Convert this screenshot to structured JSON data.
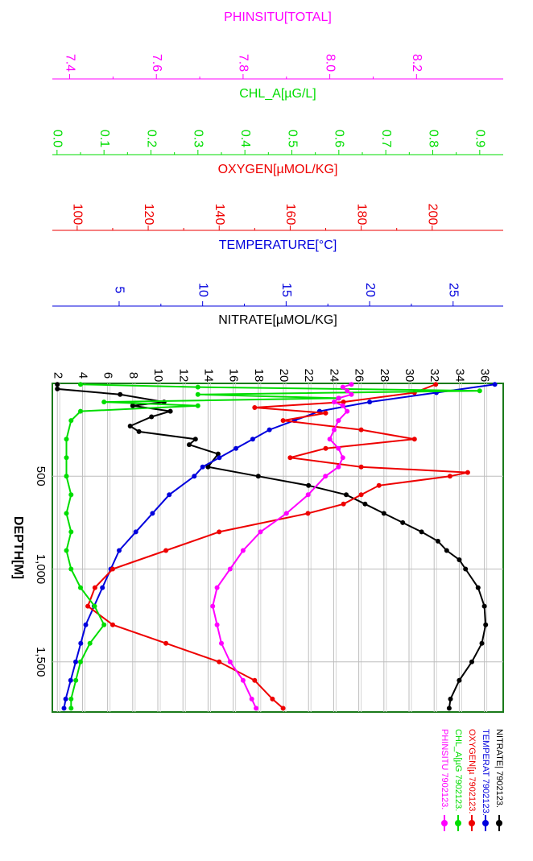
{
  "chart_data": {
    "type": "line",
    "orientation": "rotated-90-clockwise",
    "depth_axis": {
      "label": "DEPTH[M]",
      "lim": [
        0,
        1770
      ],
      "ticks": [
        500,
        1000,
        1500
      ],
      "tick_labels": [
        "500",
        "1,000",
        "1,500"
      ]
    },
    "value_axes": [
      {
        "key": "ph",
        "label": "PHINSITU[TOTAL]",
        "color": "#ff00ff",
        "lim": [
          7.36,
          8.4
        ],
        "ticks": [
          7.4,
          7.6,
          7.8,
          8.0,
          8.2
        ],
        "tick_labels": [
          "7.4",
          "7.6",
          "7.8",
          "8.0",
          "8.2"
        ]
      },
      {
        "key": "chl",
        "label": "CHL_A[µG/L]",
        "color": "#00dd00",
        "lim": [
          -0.01,
          0.95
        ],
        "ticks": [
          0.0,
          0.1,
          0.2,
          0.3,
          0.4,
          0.5,
          0.6,
          0.7,
          0.8,
          0.9
        ],
        "tick_labels": [
          "0.0",
          "0.1",
          "0.2",
          "0.3",
          "0.4",
          "0.5",
          "0.6",
          "0.7",
          "0.8",
          "0.9"
        ]
      },
      {
        "key": "oxy",
        "label": "OXYGEN[µMOL/KG]",
        "color": "#ee0000",
        "lim": [
          93,
          220
        ],
        "ticks": [
          100,
          120,
          140,
          160,
          180,
          200
        ],
        "tick_labels": [
          "100",
          "120",
          "140",
          "160",
          "180",
          "200"
        ]
      },
      {
        "key": "temp",
        "label": "TEMPERATURE[°C]",
        "color": "#0000dd",
        "lim": [
          1,
          28
        ],
        "ticks": [
          5,
          10,
          15,
          20,
          25
        ],
        "tick_labels": [
          "5",
          "10",
          "15",
          "20",
          "25"
        ]
      },
      {
        "key": "nitrate",
        "label": "NITRATE[µMOL/KG]",
        "color": "#000000",
        "lim": [
          1.6,
          37.5
        ],
        "ticks": [
          2,
          4,
          6,
          8,
          10,
          12,
          14,
          16,
          18,
          20,
          22,
          24,
          26,
          28,
          30,
          32,
          34,
          36
        ],
        "tick_labels": [
          "2",
          "4",
          "6",
          "8",
          "10",
          "12",
          "14",
          "16",
          "18",
          "20",
          "22",
          "24",
          "26",
          "28",
          "30",
          "32",
          "34",
          "36"
        ]
      }
    ],
    "series": [
      {
        "name": "NITRATE| 7902123.",
        "axis": "nitrate",
        "color": "#000000",
        "depth": [
          5,
          30,
          60,
          100,
          120,
          150,
          180,
          230,
          260,
          300,
          330,
          380,
          450,
          500,
          550,
          600,
          650,
          700,
          750,
          800,
          850,
          900,
          950,
          1000,
          1100,
          1200,
          1300,
          1400,
          1500,
          1600,
          1700,
          1750
        ],
        "values": [
          2.0,
          2.0,
          7.0,
          10.5,
          8.0,
          11.0,
          9.5,
          7.8,
          8.5,
          13.0,
          12.5,
          14.8,
          14.0,
          18.0,
          22.0,
          25.0,
          26.5,
          28.0,
          29.5,
          31.0,
          32.3,
          33.0,
          34.0,
          34.5,
          35.5,
          36.0,
          36.1,
          35.8,
          35.0,
          34.0,
          33.3,
          33.2
        ]
      },
      {
        "name": "TEMPERAT 7902123.",
        "axis": "temp",
        "color": "#0000dd",
        "depth": [
          5,
          50,
          100,
          150,
          200,
          250,
          300,
          350,
          400,
          450,
          500,
          600,
          700,
          800,
          900,
          1000,
          1100,
          1200,
          1300,
          1400,
          1500,
          1600,
          1700,
          1750
        ],
        "values": [
          27.5,
          24.0,
          20.0,
          17.0,
          15.5,
          14.0,
          13.0,
          12.0,
          11.0,
          10.0,
          9.5,
          8.0,
          7.0,
          6.0,
          5.0,
          4.5,
          4.0,
          3.5,
          3.0,
          2.7,
          2.4,
          2.1,
          1.8,
          1.7
        ]
      },
      {
        "name": "OXYGEN[µ 7902123.",
        "axis": "oxy",
        "color": "#ee0000",
        "depth": [
          5,
          50,
          100,
          130,
          160,
          200,
          250,
          300,
          350,
          400,
          450,
          480,
          500,
          550,
          600,
          650,
          700,
          800,
          900,
          1000,
          1100,
          1200,
          1300,
          1400,
          1500,
          1600,
          1700,
          1750
        ],
        "values": [
          201,
          195,
          175,
          150,
          170,
          158,
          180,
          195,
          170,
          160,
          180,
          210,
          205,
          185,
          180,
          175,
          165,
          140,
          125,
          110,
          105,
          103,
          110,
          125,
          140,
          150,
          155,
          158
        ]
      },
      {
        "name": "CHL_A[µG 7902123.",
        "axis": "chl",
        "color": "#00dd00",
        "depth": [
          5,
          20,
          40,
          60,
          80,
          100,
          120,
          150,
          200,
          300,
          400,
          500,
          600,
          700,
          800,
          900,
          1000,
          1100,
          1200,
          1300,
          1400,
          1500,
          1600,
          1700,
          1750
        ],
        "values": [
          0.05,
          0.3,
          0.9,
          0.3,
          0.6,
          0.1,
          0.3,
          0.05,
          0.03,
          0.02,
          0.02,
          0.02,
          0.03,
          0.02,
          0.03,
          0.02,
          0.03,
          0.05,
          0.08,
          0.1,
          0.07,
          0.05,
          0.04,
          0.03,
          0.03
        ]
      },
      {
        "name": "PHINSITU 7902123.",
        "axis": "ph",
        "color": "#ff00ff",
        "depth": [
          5,
          20,
          40,
          60,
          80,
          100,
          120,
          150,
          200,
          250,
          300,
          350,
          400,
          450,
          500,
          600,
          700,
          800,
          900,
          1000,
          1100,
          1200,
          1300,
          1400,
          1500,
          1600,
          1700,
          1750
        ],
        "values": [
          8.05,
          8.03,
          8.04,
          8.05,
          8.02,
          8.01,
          8.03,
          8.04,
          8.02,
          8.01,
          8.0,
          8.02,
          8.03,
          8.02,
          7.99,
          7.95,
          7.9,
          7.84,
          7.8,
          7.77,
          7.74,
          7.73,
          7.74,
          7.75,
          7.77,
          7.8,
          7.82,
          7.83
        ]
      }
    ]
  }
}
